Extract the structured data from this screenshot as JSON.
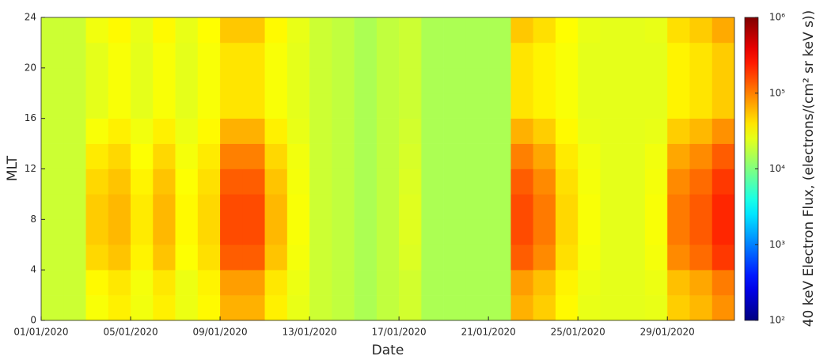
{
  "chart_data": {
    "type": "heatmap",
    "xlabel": "Date",
    "ylabel": "MLT",
    "x": [
      0.5,
      1.5,
      2.5,
      3.5,
      4.5,
      5.5,
      6.5,
      7.5,
      8.5,
      9.5,
      10.5,
      11.5,
      12.5,
      13.5,
      14.5,
      15.5,
      16.5,
      17.5,
      18.5,
      19.5,
      20.5,
      21.5,
      22.5,
      23.5,
      24.5,
      25.5,
      26.5,
      27.5,
      28.5,
      29.5,
      30.5
    ],
    "y": [
      1,
      3,
      5,
      7,
      9,
      11,
      13,
      15,
      17,
      19,
      21,
      23
    ],
    "z": [
      [
        20000,
        20000,
        30000,
        36000,
        28000,
        36000,
        27000,
        33000,
        64000,
        64000,
        36000,
        26000,
        20000,
        18000,
        15000,
        18000,
        21000,
        15000,
        15000,
        15000,
        15000,
        64000,
        49000,
        33000,
        26000,
        25000,
        25000,
        26000,
        49000,
        60000,
        85000
      ],
      [
        20000,
        20000,
        33000,
        39000,
        29000,
        39000,
        27000,
        35000,
        76000,
        76000,
        39000,
        27000,
        20000,
        18000,
        15000,
        18000,
        21000,
        15000,
        15000,
        15000,
        15000,
        76000,
        56000,
        35000,
        27000,
        25000,
        25000,
        27000,
        56000,
        70000,
        103000
      ],
      [
        20000,
        20000,
        45000,
        54000,
        35000,
        54000,
        31000,
        42000,
        136000,
        136000,
        54000,
        29000,
        20000,
        18000,
        15000,
        18000,
        23000,
        15000,
        15000,
        15000,
        15000,
        136000,
        91000,
        42000,
        29000,
        25000,
        25000,
        29000,
        91000,
        120000,
        190000
      ],
      [
        20000,
        20000,
        50000,
        60000,
        38000,
        60000,
        33000,
        45000,
        160000,
        160000,
        60000,
        30000,
        20000,
        18000,
        15000,
        18000,
        24000,
        15000,
        15000,
        15000,
        15000,
        160000,
        105000,
        45000,
        30000,
        25000,
        25000,
        30000,
        105000,
        140000,
        225000
      ],
      [
        20000,
        20000,
        50000,
        60000,
        38000,
        60000,
        33000,
        45000,
        160000,
        160000,
        60000,
        30000,
        20000,
        18000,
        15000,
        18000,
        24000,
        15000,
        15000,
        15000,
        15000,
        160000,
        105000,
        45000,
        30000,
        25000,
        25000,
        30000,
        105000,
        140000,
        225000
      ],
      [
        20000,
        20000,
        45000,
        54000,
        35000,
        54000,
        31000,
        42000,
        136000,
        136000,
        54000,
        29000,
        20000,
        18000,
        15000,
        18000,
        23000,
        15000,
        15000,
        15000,
        15000,
        136000,
        91000,
        42000,
        29000,
        25000,
        25000,
        29000,
        91000,
        120000,
        190000
      ],
      [
        20000,
        20000,
        38000,
        45000,
        31000,
        45000,
        29000,
        38000,
        100000,
        100000,
        45000,
        28000,
        20000,
        18000,
        15000,
        18000,
        22000,
        15000,
        15000,
        15000,
        15000,
        100000,
        70000,
        38000,
        28000,
        25000,
        25000,
        28000,
        70000,
        90000,
        138000
      ],
      [
        20000,
        20000,
        30000,
        36000,
        28000,
        36000,
        27000,
        33000,
        64000,
        64000,
        36000,
        26000,
        20000,
        18000,
        15000,
        18000,
        21000,
        15000,
        15000,
        15000,
        15000,
        64000,
        49000,
        33000,
        26000,
        25000,
        25000,
        26000,
        49000,
        60000,
        85000
      ],
      [
        20000,
        20000,
        25000,
        30000,
        25000,
        30000,
        25000,
        30000,
        40000,
        40000,
        30000,
        25000,
        20000,
        18000,
        15000,
        18000,
        20000,
        15000,
        15000,
        15000,
        15000,
        40000,
        35000,
        30000,
        25000,
        25000,
        25000,
        25000,
        35000,
        40000,
        50000
      ],
      [
        20000,
        20000,
        25000,
        30000,
        25000,
        30000,
        25000,
        30000,
        40000,
        40000,
        30000,
        25000,
        20000,
        18000,
        15000,
        18000,
        20000,
        15000,
        15000,
        15000,
        15000,
        40000,
        35000,
        30000,
        25000,
        25000,
        25000,
        25000,
        35000,
        40000,
        50000
      ],
      [
        20000,
        20000,
        25000,
        30000,
        25000,
        30000,
        25000,
        30000,
        40000,
        40000,
        30000,
        25000,
        20000,
        18000,
        15000,
        18000,
        20000,
        15000,
        15000,
        15000,
        15000,
        40000,
        35000,
        30000,
        25000,
        25000,
        25000,
        25000,
        35000,
        40000,
        50000
      ],
      [
        20000,
        20000,
        28000,
        33000,
        26000,
        33000,
        26000,
        32000,
        52000,
        52000,
        33000,
        26000,
        20000,
        18000,
        15000,
        18000,
        20000,
        15000,
        15000,
        15000,
        15000,
        52000,
        42000,
        32000,
        26000,
        25000,
        25000,
        26000,
        42000,
        50000,
        68000
      ]
    ],
    "xlim": [
      0,
      31
    ],
    "ylim": [
      0,
      24
    ],
    "xticks": [
      {
        "value": 0,
        "label": "01/01/2020"
      },
      {
        "value": 4,
        "label": "05/01/2020"
      },
      {
        "value": 8,
        "label": "09/01/2020"
      },
      {
        "value": 12,
        "label": "13/01/2020"
      },
      {
        "value": 16,
        "label": "17/01/2020"
      },
      {
        "value": 20,
        "label": "21/01/2020"
      },
      {
        "value": 24,
        "label": "25/01/2020"
      },
      {
        "value": 28,
        "label": "29/01/2020"
      }
    ],
    "yticks": [
      0,
      4,
      8,
      12,
      16,
      20,
      24
    ],
    "colorbar": {
      "label": "40 keV Electron Flux, (electrons/(cm² sr keV s))",
      "clim": [
        100,
        1000000
      ],
      "log": true,
      "colormap": "jet",
      "ticks": [
        {
          "value": 100,
          "label": "10²"
        },
        {
          "value": 1000,
          "label": "10³"
        },
        {
          "value": 10000,
          "label": "10⁴"
        },
        {
          "value": 100000,
          "label": "10⁵"
        },
        {
          "value": 1000000,
          "label": "10⁶"
        }
      ]
    }
  }
}
